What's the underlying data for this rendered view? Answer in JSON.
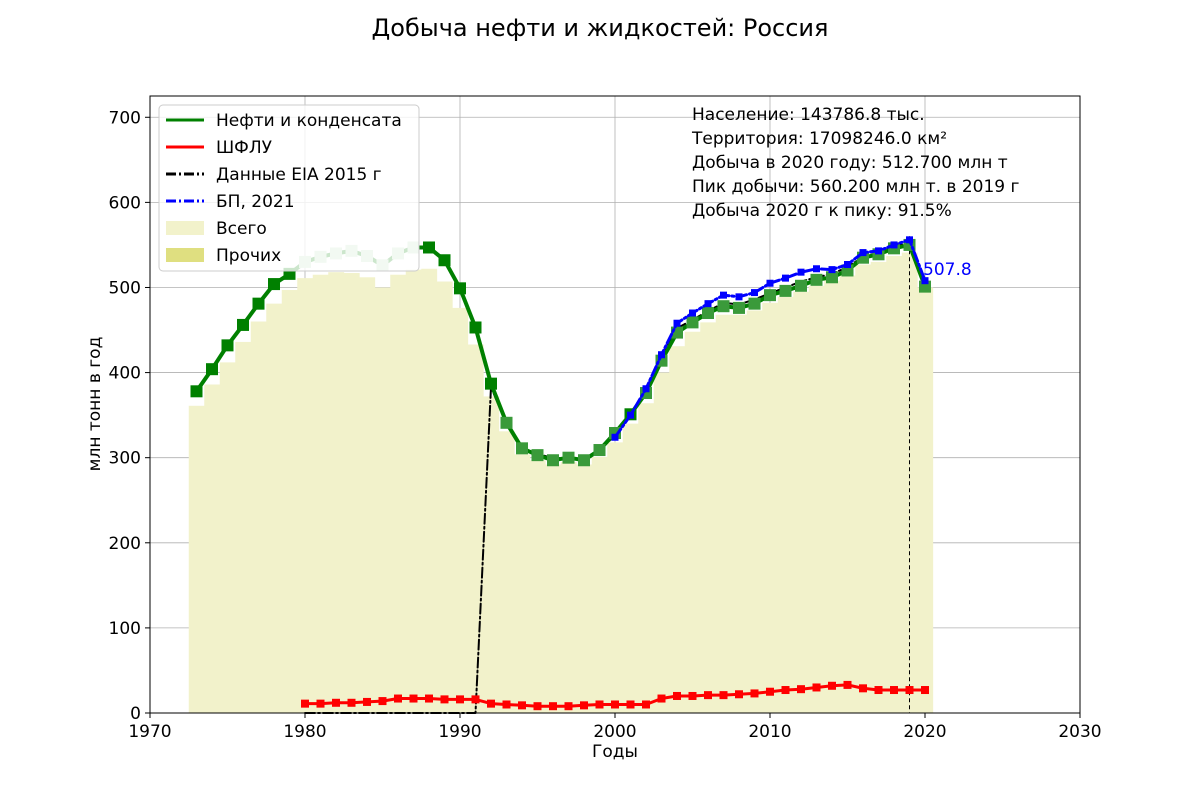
{
  "chart_data": {
    "type": "line",
    "title": "Добыча нефти и жидкостей: Россия",
    "xlabel": "Годы",
    "ylabel": "млн тонн в год",
    "xlim": [
      1970,
      2030
    ],
    "ylim": [
      0,
      725
    ],
    "x_ticks": [
      1970,
      1980,
      1990,
      2000,
      2010,
      2020,
      2030
    ],
    "y_ticks": [
      0,
      100,
      200,
      300,
      400,
      500,
      600,
      700
    ],
    "grid": true,
    "legend_position": "top-left",
    "info_lines": [
      "Население: 143786.8 тыс.",
      "Территория: 17098246.0 км²",
      "Добыча в 2020 году: 512.700 млн т",
      "Пик добычи: 560.200 млн т. в 2019 г",
      "Добыча 2020 г к пику: 91.5%"
    ],
    "annotation": {
      "text": "507.8",
      "x": 2020,
      "y": 507.8,
      "color": "#0000ff"
    },
    "peak_line": {
      "x": 2019,
      "y": 560.2
    },
    "legend": [
      {
        "label": "Нефти и конденсата",
        "kind": "line",
        "color": "#008000",
        "dash": ""
      },
      {
        "label": "ШФЛУ",
        "kind": "line",
        "color": "#ff0000",
        "dash": ""
      },
      {
        "label": "Данные EIA 2015 г",
        "kind": "line",
        "color": "#000000",
        "dash": "10 3 2 3"
      },
      {
        "label": "БП, 2021",
        "kind": "line",
        "color": "#0000ff",
        "dash": "10 3 2 3"
      },
      {
        "label": "Всего",
        "kind": "patch",
        "color": "#f2f2cb"
      },
      {
        "label": "Прочих",
        "kind": "patch",
        "color": "#dfdf80"
      }
    ],
    "series": [
      {
        "name": "Нефти и конденсата",
        "kind": "line",
        "color": "#008000",
        "marker": "square",
        "x": [
          1973,
          1974,
          1975,
          1976,
          1977,
          1978,
          1979,
          1980,
          1981,
          1982,
          1983,
          1984,
          1985,
          1986,
          1987,
          1988,
          1989,
          1990,
          1991,
          1992,
          1993,
          1994,
          1995,
          1996,
          1997,
          1998,
          1999,
          2000,
          2001,
          2002,
          2003,
          2004,
          2005,
          2006,
          2007,
          2008,
          2009,
          2010,
          2011,
          2012,
          2013,
          2014,
          2015,
          2016,
          2017,
          2018,
          2019,
          2020
        ],
        "y": [
          378,
          404,
          432,
          456,
          481,
          504,
          516,
          530,
          536,
          540,
          543,
          537,
          526,
          540,
          547,
          547,
          532,
          499,
          453,
          387,
          341,
          311,
          303,
          297,
          300,
          297,
          309,
          329,
          351,
          376,
          414,
          447,
          459,
          470,
          478,
          476,
          481,
          491,
          496,
          502,
          509,
          512,
          520,
          535,
          539,
          546,
          550,
          501
        ]
      },
      {
        "name": "ШФЛУ",
        "kind": "line",
        "color": "#ff0000",
        "marker": "square",
        "x": [
          1980,
          1981,
          1982,
          1983,
          1984,
          1985,
          1986,
          1987,
          1988,
          1989,
          1990,
          1991,
          1992,
          1993,
          1994,
          1995,
          1996,
          1997,
          1998,
          1999,
          2000,
          2001,
          2002,
          2003,
          2004,
          2005,
          2006,
          2007,
          2008,
          2009,
          2010,
          2011,
          2012,
          2013,
          2014,
          2015,
          2016,
          2017,
          2018,
          2019,
          2020
        ],
        "y": [
          11,
          11,
          12,
          12,
          13,
          14,
          17,
          17,
          17,
          16,
          16,
          16,
          11,
          10,
          9,
          8,
          8,
          8,
          9,
          10,
          10,
          10,
          10,
          17,
          20,
          20,
          21,
          21,
          22,
          23,
          25,
          27,
          28,
          30,
          32,
          33,
          29,
          27,
          27,
          27,
          27
        ]
      },
      {
        "name": "Данные EIA 2015 г",
        "kind": "line",
        "color": "#000000",
        "dash": "10 3 2 3",
        "x": [
          1980,
          1985,
          1990,
          1991,
          1992,
          1993,
          1994,
          1995,
          1996,
          1997,
          1998,
          1999,
          2000,
          2001,
          2002,
          2003,
          2004,
          2005,
          2006,
          2007,
          2008,
          2009,
          2010,
          2011,
          2012,
          2013,
          2014,
          2015,
          2016,
          2017,
          2018,
          2019
        ],
        "y": [
          0,
          0,
          0,
          0,
          383,
          340,
          311,
          304,
          300,
          299,
          298,
          309,
          326,
          350,
          380,
          420,
          452,
          462,
          472,
          482,
          480,
          486,
          493,
          500,
          507,
          512,
          516,
          524,
          536,
          541,
          549,
          552
        ]
      },
      {
        "name": "БП, 2021",
        "kind": "line",
        "color": "#0000ff",
        "dash": "10 3 2 3",
        "marker": "square",
        "x": [
          2000,
          2001,
          2002,
          2003,
          2004,
          2005,
          2006,
          2007,
          2008,
          2009,
          2010,
          2011,
          2012,
          2013,
          2014,
          2015,
          2016,
          2017,
          2018,
          2019,
          2020
        ],
        "y": [
          324,
          350,
          381,
          421,
          458,
          470,
          481,
          491,
          489,
          494,
          505,
          511,
          518,
          522,
          521,
          527,
          541,
          543,
          550,
          556,
          508
        ]
      },
      {
        "name": "Всего",
        "kind": "bar",
        "color": "#f2f2cb",
        "x": [
          1973,
          1974,
          1975,
          1976,
          1977,
          1978,
          1979,
          1980,
          1981,
          1982,
          1983,
          1984,
          1985,
          1986,
          1987,
          1988,
          1989,
          1990,
          1991,
          1992,
          1993,
          1994,
          1995,
          1996,
          1997,
          1998,
          1999,
          2000,
          2001,
          2002,
          2003,
          2004,
          2005,
          2006,
          2007,
          2008,
          2009,
          2010,
          2011,
          2012,
          2013,
          2014,
          2015,
          2016,
          2017,
          2018,
          2019,
          2020
        ],
        "y": [
          361,
          386,
          412,
          436,
          460,
          481,
          497,
          511,
          515,
          518,
          517,
          512,
          500,
          515,
          521,
          522,
          507,
          476,
          433,
          372,
          331,
          304,
          297,
          292,
          295,
          292,
          301,
          318,
          340,
          364,
          400,
          431,
          448,
          459,
          468,
          468,
          473,
          482,
          489,
          495,
          502,
          508,
          514,
          527,
          530,
          537,
          541,
          500
        ]
      },
      {
        "name": "Прочих",
        "kind": "bar",
        "color": "#dfdf80",
        "x": [
          1973,
          1974,
          1975,
          1976,
          1977,
          1978,
          1979,
          1980,
          1981,
          1982,
          1983,
          1984,
          1985,
          1986,
          1987,
          1988,
          1989,
          1990,
          1991,
          1992,
          1993,
          1994,
          1995,
          1996,
          1997,
          1998,
          1999,
          2000,
          2001,
          2002,
          2003,
          2004,
          2005,
          2006,
          2007,
          2008,
          2009,
          2010,
          2011,
          2012,
          2013,
          2014,
          2015,
          2016,
          2017,
          2018,
          2019,
          2020
        ],
        "y": [
          0,
          0,
          0,
          0,
          0,
          0,
          0,
          0,
          0,
          0,
          0,
          0,
          0,
          0,
          0,
          0,
          0,
          0,
          0,
          0,
          0,
          0,
          0,
          0,
          0,
          0,
          0,
          0,
          0,
          0,
          0,
          0,
          0,
          0,
          0,
          0,
          0,
          0,
          0,
          0,
          0,
          0,
          0,
          0,
          0,
          0,
          0,
          0
        ]
      }
    ]
  }
}
